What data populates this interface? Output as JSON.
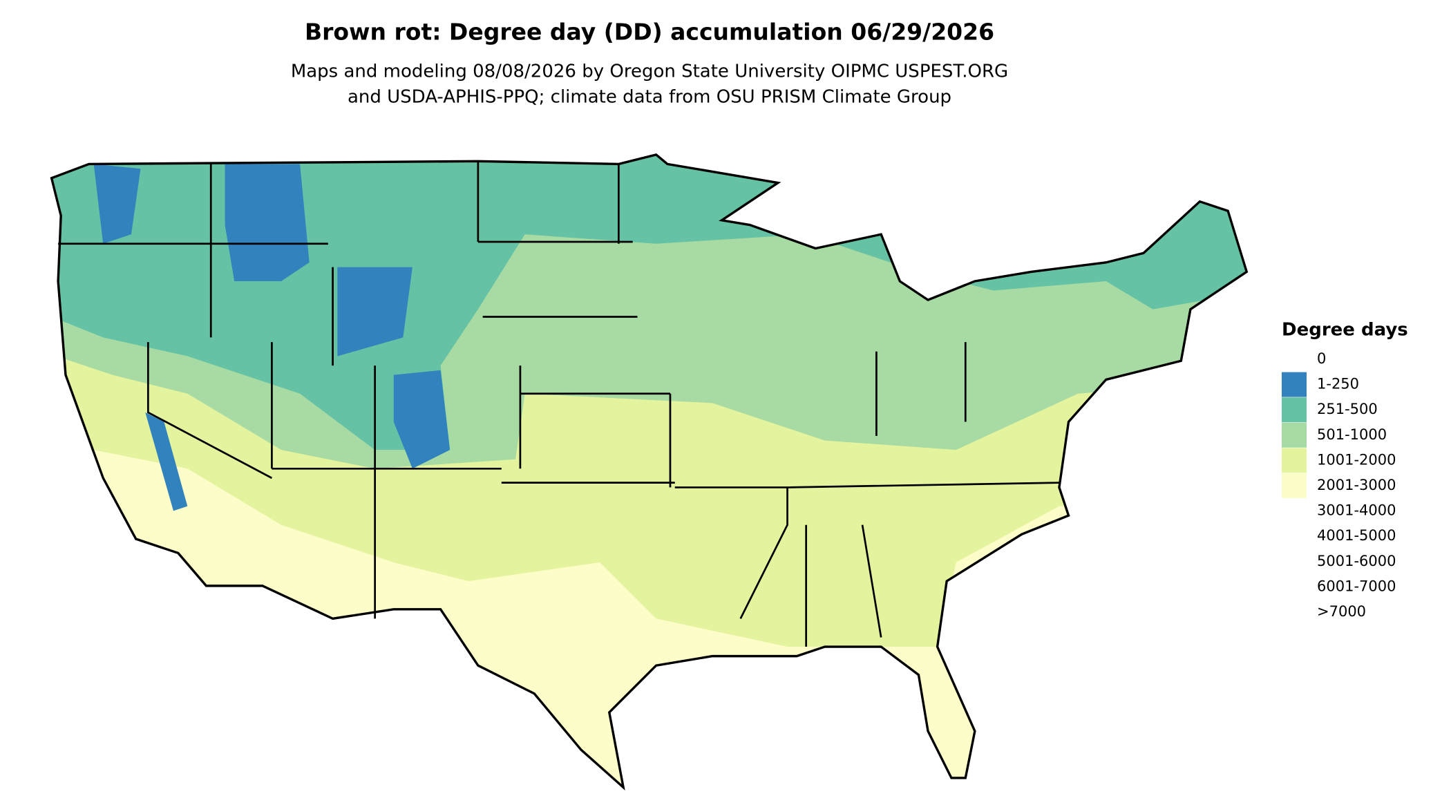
{
  "header": {
    "title": "Brown rot: Degree day (DD) accumulation 06/29/2026",
    "subtitle": [
      "Maps and modeling 08/08/2026 by Oregon State University OIPMC USPEST.ORG",
      "and USDA-APHIS-PPQ; climate data from OSU PRISM Climate Group"
    ]
  },
  "legend": {
    "title": "Degree days",
    "items": [
      {
        "label": "0",
        "color": "#ffffff"
      },
      {
        "label": "1-250",
        "color": "#3182bd"
      },
      {
        "label": "251-500",
        "color": "#66c2a4"
      },
      {
        "label": "501-1000",
        "color": "#a8dba4"
      },
      {
        "label": "1001-2000",
        "color": "#e4f49e"
      },
      {
        "label": "2001-3000",
        "color": "#fdfdc9"
      },
      {
        "label": "3001-4000",
        "color": "#ffffff"
      },
      {
        "label": "4001-5000",
        "color": "#ffffff"
      },
      {
        "label": "5001-6000",
        "color": "#ffffff"
      },
      {
        "label": "6001-7000",
        "color": "#ffffff"
      },
      {
        "label": ">7000",
        "color": "#ffffff"
      }
    ]
  }
}
